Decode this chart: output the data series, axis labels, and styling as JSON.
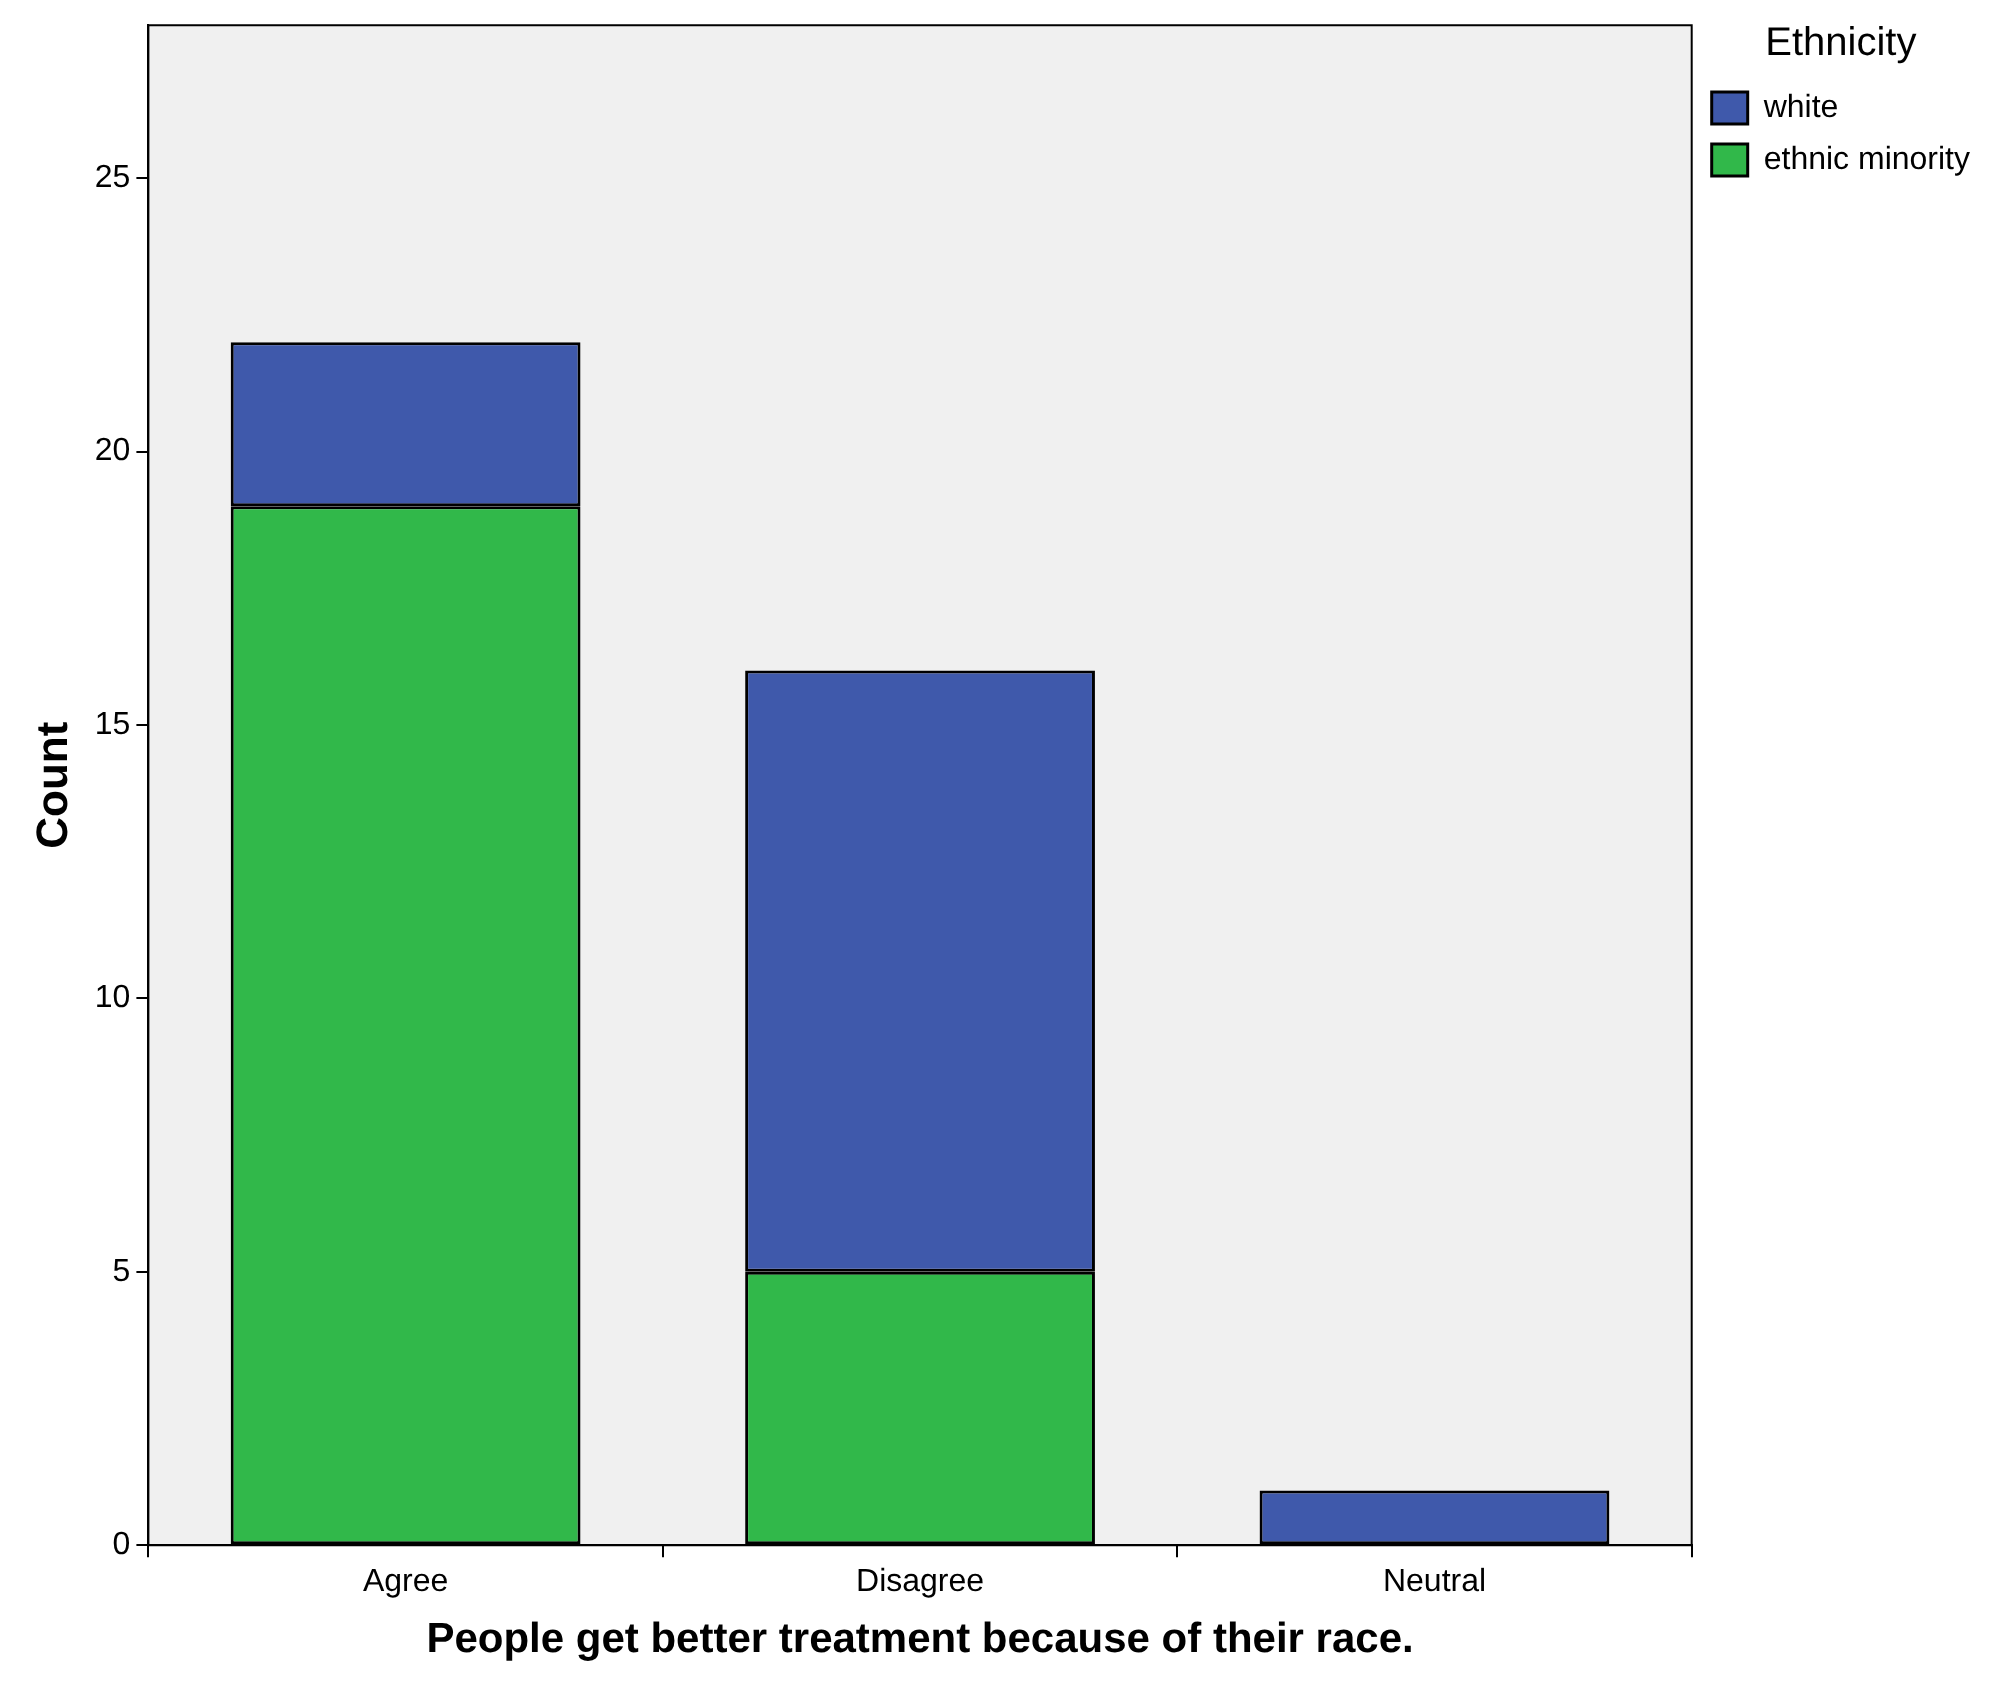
{
  "chart_data": {
    "type": "bar",
    "xlabel": "People get better treatment because of their race.",
    "ylabel": "Count",
    "legend_title": "Ethnicity",
    "categories": [
      "Agree",
      "Disagree",
      "Neutral"
    ],
    "series": [
      {
        "name": "ethnic minority",
        "color": "#31b84a",
        "values": [
          19,
          5,
          0
        ]
      },
      {
        "name": "white",
        "color": "#3f59ab",
        "values": [
          3,
          11,
          1
        ]
      }
    ],
    "stacked": true,
    "ylim": [
      0,
      27.8
    ],
    "yticks": [
      0,
      5,
      10,
      15,
      20,
      25
    ],
    "grid": false,
    "legend": "top right"
  }
}
